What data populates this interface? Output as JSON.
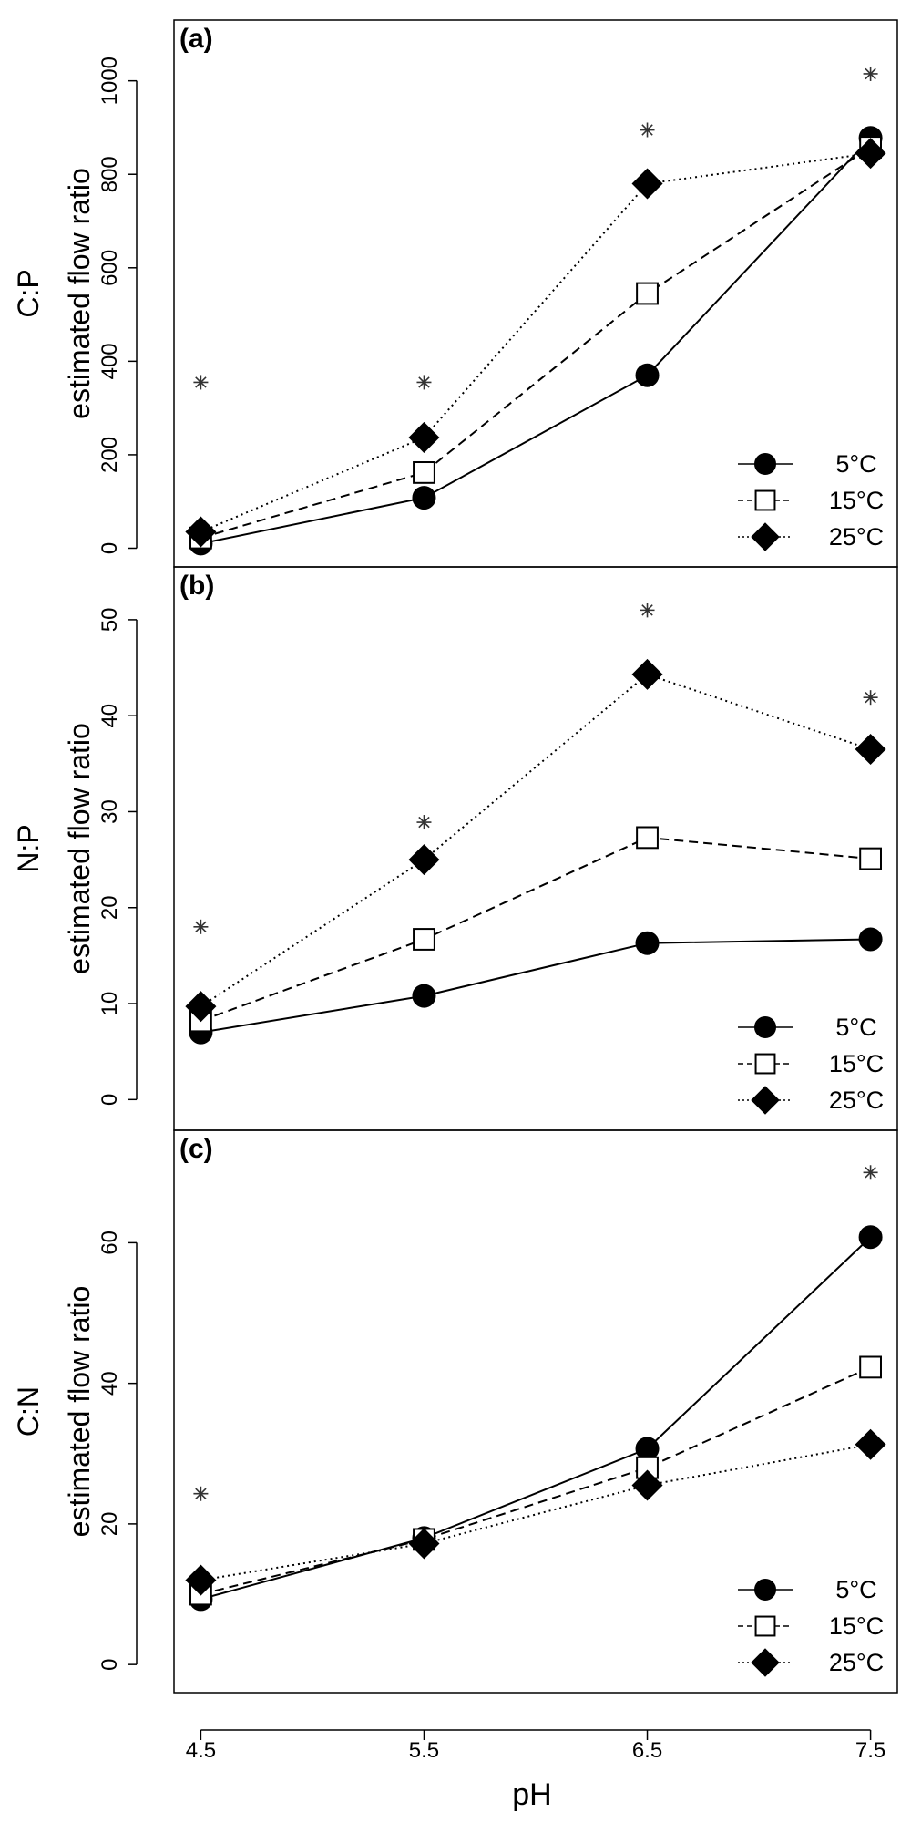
{
  "chart_data": [
    {
      "type": "line",
      "panel_label": "(a)",
      "ylabel_top": "C:P",
      "ylabel": "estimated flow ratio",
      "x": [
        4.5,
        5.5,
        6.5,
        7.5
      ],
      "ylim": [
        -40,
        1130
      ],
      "yticks": [
        0,
        200,
        400,
        600,
        800,
        1000
      ],
      "series": [
        {
          "name": "5°C",
          "marker": "circle",
          "line": "solid",
          "values": [
            10,
            108,
            370,
            878
          ]
        },
        {
          "name": "15°C",
          "marker": "square",
          "line": "dashed",
          "values": [
            22,
            162,
            545,
            858
          ]
        },
        {
          "name": "25°C",
          "marker": "diamond",
          "line": "dotted",
          "values": [
            35,
            237,
            780,
            845
          ]
        }
      ],
      "significance": {
        "symbol": "*",
        "values": [
          355,
          355,
          895,
          1015
        ]
      },
      "legend_position": "bottom-right"
    },
    {
      "type": "line",
      "panel_label": "(b)",
      "ylabel_top": "N:P",
      "ylabel": "estimated flow ratio",
      "x": [
        4.5,
        5.5,
        6.5,
        7.5
      ],
      "ylim": [
        -3.2,
        55.5
      ],
      "yticks": [
        0,
        10,
        20,
        30,
        40,
        50
      ],
      "series": [
        {
          "name": "5°C",
          "marker": "circle",
          "line": "solid",
          "values": [
            7.0,
            10.8,
            16.3,
            16.7
          ]
        },
        {
          "name": "15°C",
          "marker": "square",
          "line": "dashed",
          "values": [
            8.2,
            16.7,
            27.3,
            25.1
          ]
        },
        {
          "name": "25°C",
          "marker": "diamond",
          "line": "dotted",
          "values": [
            9.7,
            25.0,
            44.3,
            36.5
          ]
        }
      ],
      "significance": {
        "symbol": "*",
        "values": [
          18.0,
          28.9,
          51.0,
          41.9
        ]
      },
      "legend_position": "bottom-right"
    },
    {
      "type": "line",
      "panel_label": "(c)",
      "ylabel_top": "C:N",
      "ylabel": "estimated flow ratio",
      "x": [
        4.5,
        5.5,
        6.5,
        7.5
      ],
      "ylim": [
        -4,
        76
      ],
      "yticks": [
        0,
        20,
        40,
        60
      ],
      "series": [
        {
          "name": "5°C",
          "marker": "circle",
          "line": "solid",
          "values": [
            9.3,
            18.0,
            30.7,
            60.8
          ]
        },
        {
          "name": "15°C",
          "marker": "square",
          "line": "dashed",
          "values": [
            10.0,
            17.8,
            28.0,
            42.3
          ]
        },
        {
          "name": "25°C",
          "marker": "diamond",
          "line": "dotted",
          "values": [
            12.0,
            17.2,
            25.5,
            31.3
          ]
        }
      ],
      "significance": {
        "symbol": "*",
        "values": [
          24.3,
          null,
          null,
          70.0
        ]
      },
      "legend_position": "bottom-right"
    }
  ],
  "x_axis": {
    "label": "pH",
    "ticks": [
      "4.5",
      "5.5",
      "6.5",
      "7.5"
    ],
    "xlim": [
      4.38,
      7.62
    ]
  },
  "colors": {
    "line": "#000000",
    "marker_fill": "#000000",
    "open_marker_fill": "#ffffff",
    "star": "#333333"
  }
}
